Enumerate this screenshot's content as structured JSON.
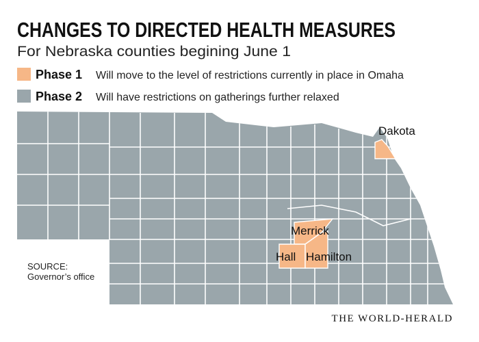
{
  "header": {
    "title": "CHANGES TO DIRECTED HEALTH MEASURES",
    "subtitle": "For Nebraska counties begining June 1"
  },
  "legend": {
    "items": [
      {
        "label": "Phase 1",
        "description": "Will move to the level of restrictions currently in place in Omaha",
        "color": "#f6b787",
        "counties": [
          "Dakota",
          "Merrick",
          "Hall",
          "Hamilton"
        ]
      },
      {
        "label": "Phase 2",
        "description": "Will have restrictions on gatherings further relaxed",
        "color": "#9aa6ab"
      }
    ]
  },
  "source": {
    "label": "SOURCE:",
    "text": "Governor’s office"
  },
  "credit": "THE WORLD-HERALD"
}
